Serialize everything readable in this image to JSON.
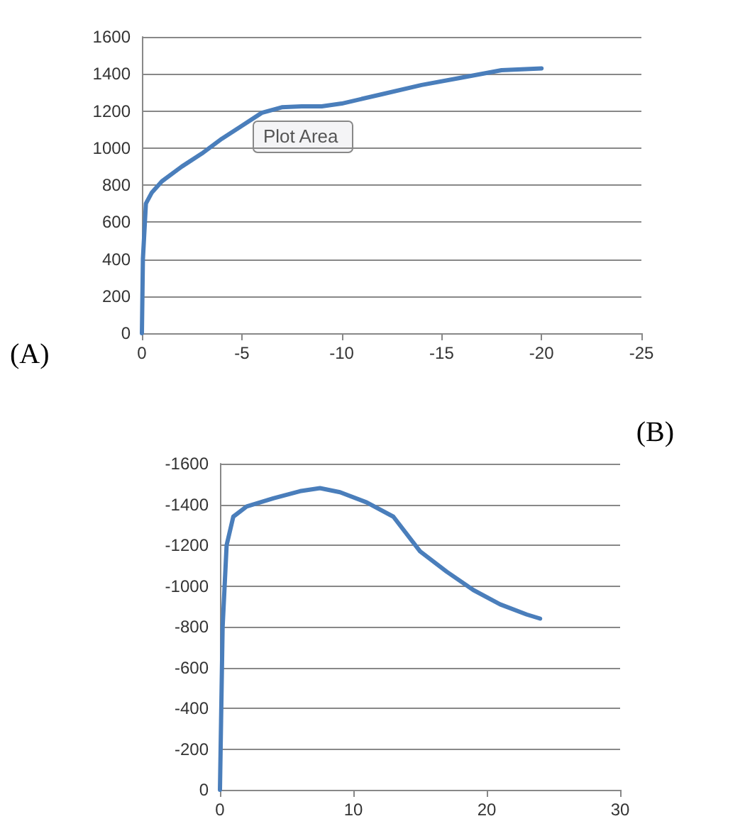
{
  "chart_data": [
    {
      "type": "line",
      "title": "(A)",
      "annotations": [
        "Plot Area"
      ],
      "x": [
        0,
        -0.05,
        -0.2,
        -0.5,
        -1,
        -2,
        -3,
        -4,
        -5,
        -6,
        -7,
        -8,
        -9,
        -10,
        -12,
        -14,
        -16,
        -18,
        -20
      ],
      "series": [
        {
          "color": "#4a7ebb",
          "values": [
            0,
            400,
            700,
            760,
            820,
            900,
            970,
            1050,
            1120,
            1190,
            1220,
            1225,
            1225,
            1240,
            1290,
            1340,
            1380,
            1420,
            1430
          ]
        }
      ],
      "xlim": [
        0,
        -25
      ],
      "xticks": [
        0,
        -5,
        -10,
        -15,
        -20,
        -25
      ],
      "ylim": [
        0,
        1600
      ],
      "yticks": [
        0,
        200,
        400,
        600,
        800,
        1000,
        1200,
        1400,
        1600
      ],
      "grid": "y",
      "marker": "none"
    },
    {
      "type": "line",
      "title": "(B)",
      "x": [
        0,
        0.2,
        0.5,
        1,
        2,
        4,
        6,
        7.5,
        9,
        11,
        13,
        15,
        17,
        19,
        21,
        23,
        24
      ],
      "series": [
        {
          "color": "#4a7ebb",
          "values": [
            0,
            -800,
            -1200,
            -1340,
            -1390,
            -1430,
            -1465,
            -1480,
            -1460,
            -1410,
            -1340,
            -1170,
            -1070,
            -980,
            -910,
            -860,
            -840
          ]
        }
      ],
      "xlim": [
        0,
        30
      ],
      "xticks": [
        0,
        10,
        20,
        30
      ],
      "ylim": [
        0,
        -1600
      ],
      "yticks": [
        0,
        -200,
        -400,
        -600,
        -800,
        -1000,
        -1200,
        -1400,
        -1600
      ],
      "grid": "y",
      "marker": "none"
    }
  ]
}
